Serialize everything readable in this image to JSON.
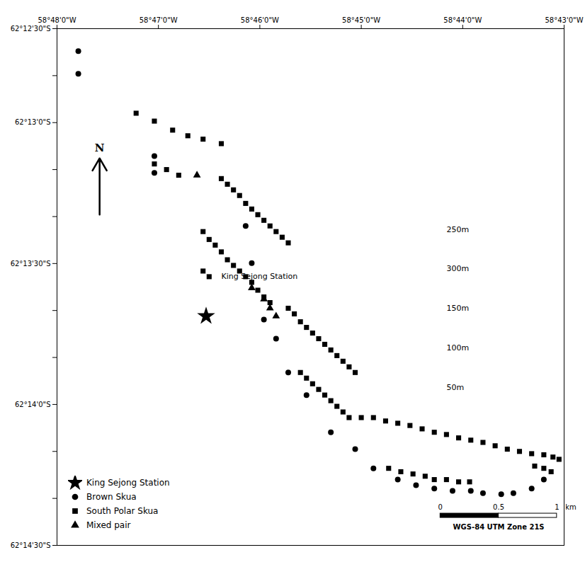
{
  "chart_data": {
    "type": "scatter",
    "xlim": [
      -58.8,
      -58.7166667
    ],
    "ylim": [
      -62.2458333,
      -62.2
    ],
    "xticks": [
      {
        "value": -58.8,
        "label": "58°48'0\"W"
      },
      {
        "value": -58.7833333,
        "label": "58°47'0\"W"
      },
      {
        "value": -58.7666667,
        "label": "58°46'0\"W"
      },
      {
        "value": -58.75,
        "label": "58°45'0\"W"
      },
      {
        "value": -58.7333333,
        "label": "58°44'0\"W"
      },
      {
        "value": -58.7166667,
        "label": "58°43'0\"W"
      }
    ],
    "yticks": [
      {
        "value": -62.2458333,
        "label": "62°14'30\"S"
      },
      {
        "value": -62.2416667,
        "label": null
      },
      {
        "value": -62.2375,
        "label": null
      },
      {
        "value": -62.2333333,
        "label": "62°14'0\"S"
      },
      {
        "value": -62.2291667,
        "label": null
      },
      {
        "value": -62.225,
        "label": null
      },
      {
        "value": -62.2208333,
        "label": "62°13'30\"S"
      },
      {
        "value": -62.2166667,
        "label": null
      },
      {
        "value": -62.2125,
        "label": null
      },
      {
        "value": -62.2083333,
        "label": "62°13'0\"S"
      },
      {
        "value": -62.2041667,
        "label": null
      },
      {
        "value": -62.2,
        "label": "62°12'30\"S"
      }
    ],
    "grid": false,
    "legend": "lower left",
    "series": [
      {
        "name": "King Sejong Station",
        "marker": "star",
        "points": [
          [
            -58.7755,
            -62.2255
          ]
        ]
      },
      {
        "name": "Brown Skua",
        "marker": "circle",
        "points": [
          [
            -58.7965,
            -62.202
          ],
          [
            -58.7965,
            -62.204
          ],
          [
            -58.784,
            -62.2113
          ],
          [
            -58.784,
            -62.2128
          ],
          [
            -58.769,
            -62.2175
          ],
          [
            -58.768,
            -62.2208
          ],
          [
            -58.766,
            -62.2258
          ],
          [
            -58.764,
            -62.2275
          ],
          [
            -58.762,
            -62.2305
          ],
          [
            -58.759,
            -62.2325
          ],
          [
            -58.755,
            -62.2358
          ],
          [
            -58.751,
            -62.2373
          ],
          [
            -58.748,
            -62.239
          ],
          [
            -58.744,
            -62.24
          ],
          [
            -58.741,
            -62.2405
          ],
          [
            -58.738,
            -62.2408
          ],
          [
            -58.735,
            -62.241
          ],
          [
            -58.732,
            -62.241
          ],
          [
            -58.73,
            -62.2412
          ],
          [
            -58.727,
            -62.2413
          ],
          [
            -58.725,
            -62.2412
          ],
          [
            -58.722,
            -62.2408
          ],
          [
            -58.72,
            -62.24
          ]
        ]
      },
      {
        "name": "South Polar Skua",
        "marker": "square",
        "points": [
          [
            -58.787,
            -62.2075
          ],
          [
            -58.784,
            -62.2082
          ],
          [
            -58.781,
            -62.209
          ],
          [
            -58.7785,
            -62.2095
          ],
          [
            -58.776,
            -62.2098
          ],
          [
            -58.773,
            -62.2102
          ],
          [
            -58.784,
            -62.212
          ],
          [
            -58.782,
            -62.2125
          ],
          [
            -58.78,
            -62.213
          ],
          [
            -58.773,
            -62.2133
          ],
          [
            -58.772,
            -62.2138
          ],
          [
            -58.771,
            -62.2143
          ],
          [
            -58.77,
            -62.2148
          ],
          [
            -58.769,
            -62.2155
          ],
          [
            -58.768,
            -62.216
          ],
          [
            -58.767,
            -62.2165
          ],
          [
            -58.766,
            -62.217
          ],
          [
            -58.765,
            -62.2175
          ],
          [
            -58.764,
            -62.218
          ],
          [
            -58.763,
            -62.2185
          ],
          [
            -58.762,
            -62.219
          ],
          [
            -58.776,
            -62.218
          ],
          [
            -58.775,
            -62.2187
          ],
          [
            -58.774,
            -62.2192
          ],
          [
            -58.773,
            -62.2198
          ],
          [
            -58.772,
            -62.2205
          ],
          [
            -58.771,
            -62.221
          ],
          [
            -58.77,
            -62.2215
          ],
          [
            -58.769,
            -62.222
          ],
          [
            -58.768,
            -62.2225
          ],
          [
            -58.767,
            -62.2232
          ],
          [
            -58.766,
            -62.2238
          ],
          [
            -58.765,
            -62.2243
          ],
          [
            -58.776,
            -62.2215
          ],
          [
            -58.775,
            -62.222
          ],
          [
            -58.762,
            -62.2248
          ],
          [
            -58.761,
            -62.2253
          ],
          [
            -58.76,
            -62.226
          ],
          [
            -58.759,
            -62.2265
          ],
          [
            -58.758,
            -62.227
          ],
          [
            -58.757,
            -62.2275
          ],
          [
            -58.756,
            -62.228
          ],
          [
            -58.755,
            -62.2285
          ],
          [
            -58.754,
            -62.229
          ],
          [
            -58.753,
            -62.2295
          ],
          [
            -58.752,
            -62.23
          ],
          [
            -58.751,
            -62.2305
          ],
          [
            -58.76,
            -62.2305
          ],
          [
            -58.759,
            -62.231
          ],
          [
            -58.758,
            -62.2315
          ],
          [
            -58.757,
            -62.232
          ],
          [
            -58.756,
            -62.2325
          ],
          [
            -58.755,
            -62.233
          ],
          [
            -58.754,
            -62.2335
          ],
          [
            -58.753,
            -62.234
          ],
          [
            -58.752,
            -62.2345
          ],
          [
            -58.75,
            -62.2345
          ],
          [
            -58.748,
            -62.2345
          ],
          [
            -58.746,
            -62.2348
          ],
          [
            -58.744,
            -62.235
          ],
          [
            -58.742,
            -62.2352
          ],
          [
            -58.74,
            -62.2355
          ],
          [
            -58.738,
            -62.2358
          ],
          [
            -58.736,
            -62.236
          ],
          [
            -58.734,
            -62.2363
          ],
          [
            -58.732,
            -62.2365
          ],
          [
            -58.73,
            -62.2367
          ],
          [
            -58.728,
            -62.237
          ],
          [
            -58.726,
            -62.2373
          ],
          [
            -58.724,
            -62.2375
          ],
          [
            -58.722,
            -62.2377
          ],
          [
            -58.72,
            -62.2378
          ],
          [
            -58.7185,
            -62.238
          ],
          [
            -58.7175,
            -62.2382
          ],
          [
            -58.7455,
            -62.239
          ],
          [
            -58.7435,
            -62.2393
          ],
          [
            -58.7415,
            -62.2395
          ],
          [
            -58.7395,
            -62.2397
          ],
          [
            -58.738,
            -62.24
          ],
          [
            -58.736,
            -62.24
          ],
          [
            -58.734,
            -62.2402
          ],
          [
            -58.7322,
            -62.2402
          ],
          [
            -58.7215,
            -62.2388
          ],
          [
            -58.72,
            -62.239
          ],
          [
            -58.7188,
            -62.2393
          ]
        ]
      },
      {
        "name": "Mixed pair",
        "marker": "triangle",
        "points": [
          [
            -58.777,
            -62.213
          ],
          [
            -58.768,
            -62.223
          ],
          [
            -58.766,
            -62.224
          ],
          [
            -58.765,
            -62.2248
          ],
          [
            -58.764,
            -62.2255
          ]
        ]
      }
    ],
    "annotations": [
      {
        "text": "King Sejong Station",
        "x": -58.773,
        "y": -62.222
      },
      {
        "text": "250m",
        "x": -58.736,
        "y": -62.2178
      },
      {
        "text": "300m",
        "x": -58.736,
        "y": -62.2213
      },
      {
        "text": "150m",
        "x": -58.736,
        "y": -62.2248
      },
      {
        "text": "100m",
        "x": -58.736,
        "y": -62.2283
      },
      {
        "text": "50m",
        "x": -58.736,
        "y": -62.2318
      }
    ],
    "north_arrow": {
      "text": "N",
      "x": -58.793,
      "y_top": -62.2115,
      "y_bottom": -62.2165
    },
    "scale_bar": {
      "x": -58.737,
      "y": -62.2432,
      "length": 0.01915,
      "ticks": [
        0,
        0.5,
        1
      ],
      "unit": "km",
      "caption": "WGS-84 UTM Zone 21S"
    }
  }
}
